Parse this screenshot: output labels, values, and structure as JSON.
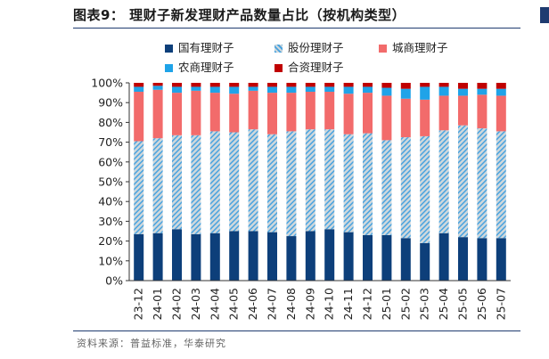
{
  "figure": {
    "title": "图表9：  理财子新发理财产品数量占比（按机构类型）",
    "source": "资料来源：普益标准，华泰研究"
  },
  "colors": {
    "guoyou": "#0d3f7a",
    "gufen_fill": "#cfd8dc",
    "gufen_hatch": "#4aa3df",
    "chengshang": "#f26b6b",
    "nongshang": "#1fa3e8",
    "hezi": "#c00000",
    "rule": "#1f3b70"
  },
  "chart_data": {
    "type": "bar",
    "stacked": true,
    "title": "",
    "xlabel": "",
    "ylabel": "",
    "ylim": [
      0,
      100
    ],
    "y_ticks": [
      "0%",
      "10%",
      "20%",
      "30%",
      "40%",
      "50%",
      "60%",
      "70%",
      "80%",
      "90%",
      "100%"
    ],
    "y_tick_values": [
      0,
      10,
      20,
      30,
      40,
      50,
      60,
      70,
      80,
      90,
      100
    ],
    "grid": false,
    "legend_position": "top",
    "categories": [
      "23-12",
      "24-01",
      "24-02",
      "24-03",
      "24-04",
      "24-05",
      "24-06",
      "24-07",
      "24-08",
      "24-09",
      "24-10",
      "24-11",
      "24-12",
      "25-01",
      "25-02",
      "25-03",
      "25-04",
      "25-05",
      "25-06",
      "25-07"
    ],
    "series": [
      {
        "name": "国有理财子",
        "color_key": "guoyou",
        "values": [
          23.5,
          24,
          26,
          23.5,
          24,
          25,
          25,
          24.5,
          22.5,
          25,
          26,
          24.5,
          23,
          23,
          21.5,
          19,
          24,
          22,
          21.5,
          21.5
        ]
      },
      {
        "name": "股份理财子",
        "color_key": "gufen_fill",
        "hatched": true,
        "values": [
          47,
          48,
          47.5,
          50,
          51.5,
          50,
          51.5,
          49.5,
          53,
          51.5,
          50.5,
          49.5,
          51.5,
          48,
          51,
          54,
          52,
          56.5,
          55.5,
          54
        ]
      },
      {
        "name": "城商理财子",
        "color_key": "chengshang",
        "values": [
          25,
          24.5,
          21.5,
          22.5,
          19.5,
          19.5,
          19.5,
          21,
          19.5,
          19,
          19,
          20.5,
          20.5,
          22.5,
          19.5,
          18.5,
          17.5,
          15,
          17,
          18
        ]
      },
      {
        "name": "农商理财子",
        "color_key": "nongshang",
        "values": [
          2.5,
          2,
          3,
          2,
          3,
          3.5,
          2,
          3,
          3,
          2.5,
          2.5,
          3.5,
          3,
          4,
          5,
          6.5,
          4.5,
          3.5,
          3,
          3.5
        ]
      },
      {
        "name": "合资理财子",
        "color_key": "hezi",
        "values": [
          2,
          1.5,
          2,
          2,
          2,
          2,
          2,
          2,
          2,
          2,
          2,
          2,
          2,
          2.5,
          3,
          2,
          2,
          3,
          3,
          3
        ]
      }
    ]
  }
}
